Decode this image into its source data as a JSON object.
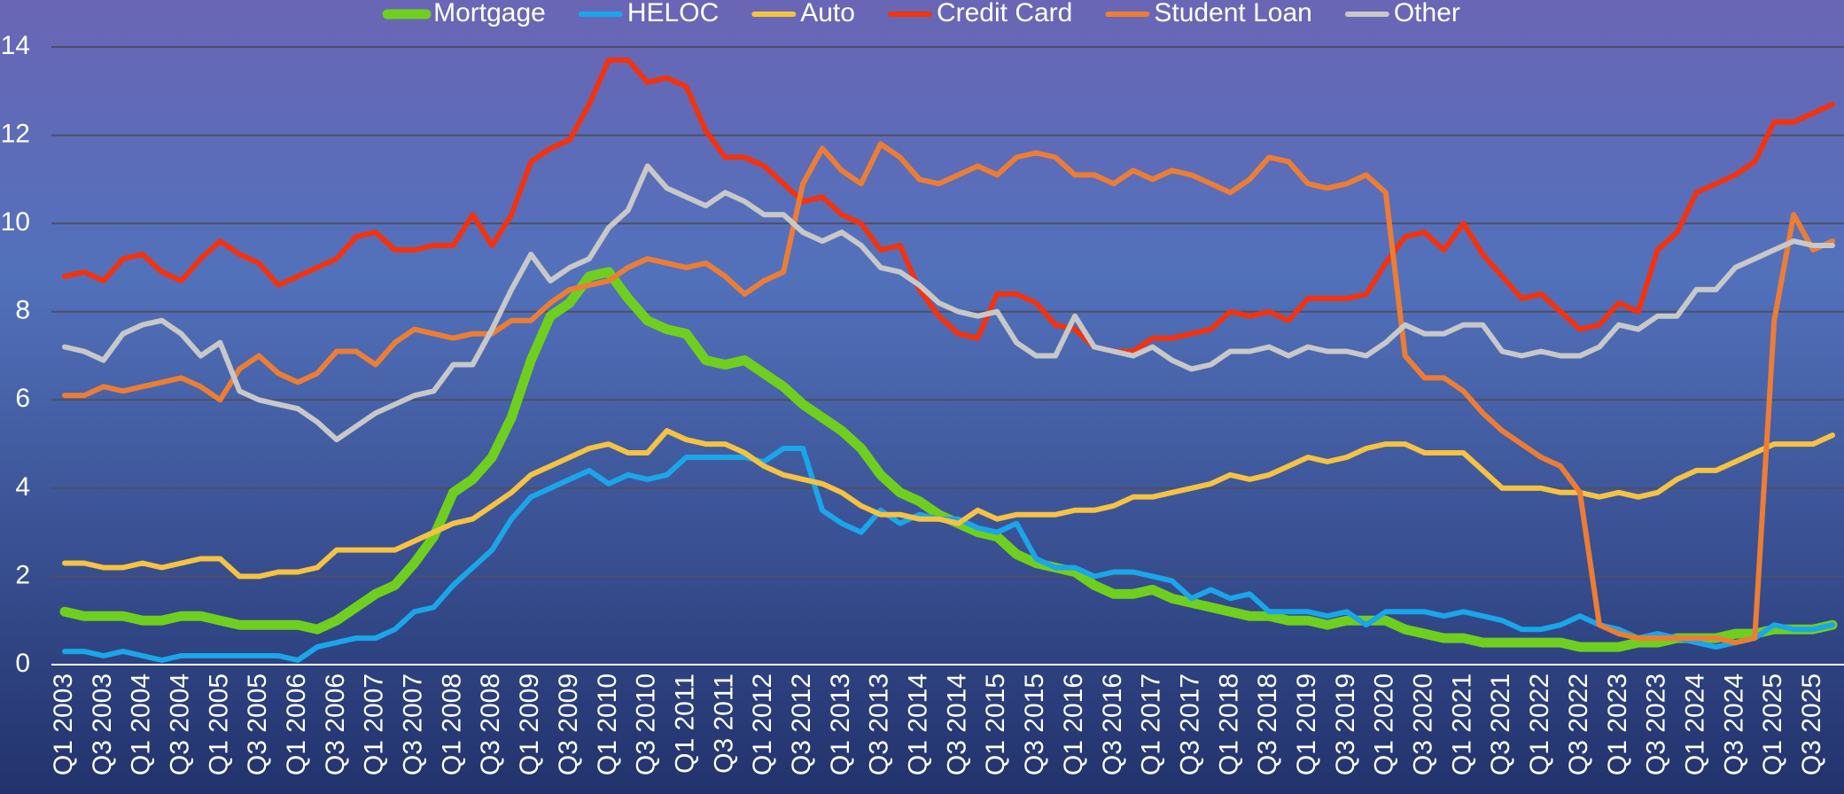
{
  "chart_data": {
    "type": "line",
    "categories": [
      "Q1 2003",
      null,
      "Q3 2003",
      null,
      "Q1 2004",
      null,
      "Q3 2004",
      null,
      "Q1 2005",
      null,
      "Q3 2005",
      null,
      "Q1 2006",
      null,
      "Q3 2006",
      null,
      "Q1 2007",
      null,
      "Q3 2007",
      null,
      "Q1 2008",
      null,
      "Q3 2008",
      null,
      "Q1 2009",
      null,
      "Q3 2009",
      null,
      "Q1 2010",
      null,
      "Q3 2010",
      null,
      "Q1 2011",
      null,
      "Q3 2011",
      null,
      "Q1 2012",
      null,
      "Q3 2012",
      null,
      "Q1 2013",
      null,
      "Q3 2013",
      null,
      "Q1 2014",
      null,
      "Q3 2014",
      null,
      "Q1 2015",
      null,
      "Q3 2015",
      null,
      "Q1 2016",
      null,
      "Q3 2016",
      null,
      "Q1 2017",
      null,
      "Q3 2017",
      null,
      "Q1 2018",
      null,
      "Q3 2018",
      null,
      "Q1 2019",
      null,
      "Q3 2019",
      null,
      "Q1 2020",
      null,
      "Q3 2020",
      null,
      "Q1 2021",
      null,
      "Q3 2021",
      null,
      "Q1 2022",
      null,
      "Q3 2022",
      null,
      "Q1 2023",
      null,
      "Q3 2023",
      null,
      "Q1 2024",
      null,
      "Q3 2024",
      null,
      "Q1 2025",
      null,
      "Q3 2025",
      null
    ],
    "series": [
      {
        "name": "Mortgage",
        "color": "#6fcf1f",
        "values": [
          1.2,
          1.1,
          1.1,
          1.1,
          1.0,
          1.0,
          1.1,
          1.1,
          1.0,
          0.9,
          0.9,
          0.9,
          0.9,
          0.8,
          1.0,
          1.3,
          1.6,
          1.8,
          2.3,
          2.9,
          3.9,
          4.2,
          4.7,
          5.6,
          6.9,
          7.9,
          8.2,
          8.8,
          8.9,
          8.3,
          7.8,
          7.6,
          7.5,
          6.9,
          6.8,
          6.9,
          6.6,
          6.3,
          5.9,
          5.6,
          5.3,
          4.9,
          4.3,
          3.9,
          3.7,
          3.4,
          3.2,
          3.0,
          2.9,
          2.5,
          2.3,
          2.2,
          2.1,
          1.8,
          1.6,
          1.6,
          1.7,
          1.5,
          1.4,
          1.3,
          1.2,
          1.1,
          1.1,
          1.0,
          1.0,
          0.9,
          1.0,
          1.0,
          1.0,
          0.8,
          0.7,
          0.6,
          0.6,
          0.5,
          0.5,
          0.5,
          0.5,
          0.5,
          0.4,
          0.4,
          0.4,
          0.5,
          0.5,
          0.6,
          0.6,
          0.6,
          0.7,
          0.7,
          0.8,
          0.8,
          0.8,
          0.9
        ]
      },
      {
        "name": "HELOC",
        "color": "#1aa6e8",
        "values": [
          0.3,
          0.3,
          0.2,
          0.3,
          0.2,
          0.1,
          0.2,
          0.2,
          0.2,
          0.2,
          0.2,
          0.2,
          0.1,
          0.4,
          0.5,
          0.6,
          0.6,
          0.8,
          1.2,
          1.3,
          1.8,
          2.2,
          2.6,
          3.3,
          3.8,
          4.0,
          4.2,
          4.4,
          4.1,
          4.3,
          4.2,
          4.3,
          4.7,
          4.7,
          4.7,
          4.7,
          4.6,
          4.9,
          4.9,
          3.5,
          3.2,
          3.0,
          3.5,
          3.2,
          3.4,
          3.3,
          3.3,
          3.1,
          3.0,
          3.2,
          2.4,
          2.2,
          2.2,
          2.0,
          2.1,
          2.1,
          2.0,
          1.9,
          1.5,
          1.7,
          1.5,
          1.6,
          1.2,
          1.2,
          1.2,
          1.1,
          1.2,
          0.9,
          1.2,
          1.2,
          1.2,
          1.1,
          1.2,
          1.1,
          1.0,
          0.8,
          0.8,
          0.9,
          1.1,
          0.9,
          0.8,
          0.6,
          0.7,
          0.6,
          0.5,
          0.4,
          0.5,
          0.6,
          0.9,
          0.8,
          0.8,
          0.9
        ]
      },
      {
        "name": "Auto",
        "color": "#f5c242",
        "values": [
          2.3,
          2.3,
          2.2,
          2.2,
          2.3,
          2.2,
          2.3,
          2.4,
          2.4,
          2.0,
          2.0,
          2.1,
          2.1,
          2.2,
          2.6,
          2.6,
          2.6,
          2.6,
          2.8,
          3.0,
          3.2,
          3.3,
          3.6,
          3.9,
          4.3,
          4.5,
          4.7,
          4.9,
          5.0,
          4.8,
          4.8,
          5.3,
          5.1,
          5.0,
          5.0,
          4.8,
          4.5,
          4.3,
          4.2,
          4.1,
          3.9,
          3.6,
          3.4,
          3.4,
          3.3,
          3.3,
          3.2,
          3.5,
          3.3,
          3.4,
          3.4,
          3.4,
          3.5,
          3.5,
          3.6,
          3.8,
          3.8,
          3.9,
          4.0,
          4.1,
          4.3,
          4.2,
          4.3,
          4.5,
          4.7,
          4.6,
          4.7,
          4.9,
          5.0,
          5.0,
          4.8,
          4.8,
          4.8,
          4.4,
          4.0,
          4.0,
          4.0,
          3.9,
          3.9,
          3.8,
          3.9,
          3.8,
          3.9,
          4.2,
          4.4,
          4.4,
          4.6,
          4.8,
          5.0,
          5.0,
          5.0,
          5.2
        ]
      },
      {
        "name": "Credit Card",
        "color": "#f2330f",
        "values": [
          8.8,
          8.9,
          8.7,
          9.2,
          9.3,
          8.9,
          8.7,
          9.2,
          9.6,
          9.3,
          9.1,
          8.6,
          8.8,
          9.0,
          9.2,
          9.7,
          9.8,
          9.4,
          9.4,
          9.5,
          9.5,
          10.2,
          9.5,
          10.2,
          11.4,
          11.7,
          11.9,
          12.7,
          13.7,
          13.7,
          13.2,
          13.3,
          13.1,
          12.1,
          11.5,
          11.5,
          11.3,
          10.9,
          10.5,
          10.6,
          10.2,
          10.0,
          9.4,
          9.5,
          8.5,
          7.9,
          7.5,
          7.4,
          8.4,
          8.4,
          8.2,
          7.7,
          7.6,
          7.2,
          7.1,
          7.1,
          7.4,
          7.4,
          7.5,
          7.6,
          8.0,
          7.9,
          8.0,
          7.8,
          8.3,
          8.3,
          8.3,
          8.4,
          9.1,
          9.7,
          9.8,
          9.4,
          10.0,
          9.3,
          8.8,
          8.3,
          8.4,
          8.0,
          7.6,
          7.7,
          8.2,
          8.0,
          9.4,
          9.8,
          10.7,
          10.9,
          11.1,
          11.4,
          12.3,
          12.3,
          12.5,
          12.7
        ]
      },
      {
        "name": "Student Loan",
        "color": "#ec7d35",
        "values": [
          6.1,
          6.1,
          6.3,
          6.2,
          6.3,
          6.4,
          6.5,
          6.3,
          6.0,
          6.7,
          7.0,
          6.6,
          6.4,
          6.6,
          7.1,
          7.1,
          6.8,
          7.3,
          7.6,
          7.5,
          7.4,
          7.5,
          7.5,
          7.8,
          7.8,
          8.2,
          8.5,
          8.6,
          8.7,
          9.0,
          9.2,
          9.1,
          9.0,
          9.1,
          8.8,
          8.4,
          8.7,
          8.9,
          10.9,
          11.7,
          11.2,
          10.9,
          11.8,
          11.5,
          11.0,
          10.9,
          11.1,
          11.3,
          11.1,
          11.5,
          11.6,
          11.5,
          11.1,
          11.1,
          10.9,
          11.2,
          11.0,
          11.2,
          11.1,
          10.9,
          10.7,
          11.0,
          11.5,
          11.4,
          10.9,
          10.8,
          10.9,
          11.1,
          10.7,
          7.0,
          6.5,
          6.5,
          6.2,
          5.7,
          5.3,
          5.0,
          4.7,
          4.5,
          3.9,
          0.9,
          0.7,
          0.6,
          0.6,
          0.6,
          0.6,
          0.6,
          0.5,
          0.6,
          7.8,
          10.2,
          9.4,
          9.6
        ]
      },
      {
        "name": "Other",
        "color": "#c8c8c8",
        "values": [
          7.2,
          7.1,
          6.9,
          7.5,
          7.7,
          7.8,
          7.5,
          7.0,
          7.3,
          6.2,
          6.0,
          5.9,
          5.8,
          5.5,
          5.1,
          5.4,
          5.7,
          5.9,
          6.1,
          6.2,
          6.8,
          6.8,
          7.6,
          8.5,
          9.3,
          8.7,
          9.0,
          9.2,
          9.9,
          10.3,
          11.3,
          10.8,
          10.6,
          10.4,
          10.7,
          10.5,
          10.2,
          10.2,
          9.8,
          9.6,
          9.8,
          9.5,
          9.0,
          8.9,
          8.6,
          8.2,
          8.0,
          7.9,
          8.0,
          7.3,
          7.0,
          7.0,
          7.9,
          7.2,
          7.1,
          7.0,
          7.2,
          6.9,
          6.7,
          6.8,
          7.1,
          7.1,
          7.2,
          7.0,
          7.2,
          7.1,
          7.1,
          7.0,
          7.3,
          7.7,
          7.5,
          7.5,
          7.7,
          7.7,
          7.1,
          7.0,
          7.1,
          7.0,
          7.0,
          7.2,
          7.7,
          7.6,
          7.9,
          7.9,
          8.5,
          8.5,
          9.0,
          9.2,
          9.4,
          9.6,
          9.5,
          9.5
        ]
      }
    ],
    "ylim": [
      0,
      14
    ],
    "yticks": [
      0,
      2,
      4,
      6,
      8,
      10,
      12,
      14
    ],
    "grid": true,
    "legend": "top"
  }
}
